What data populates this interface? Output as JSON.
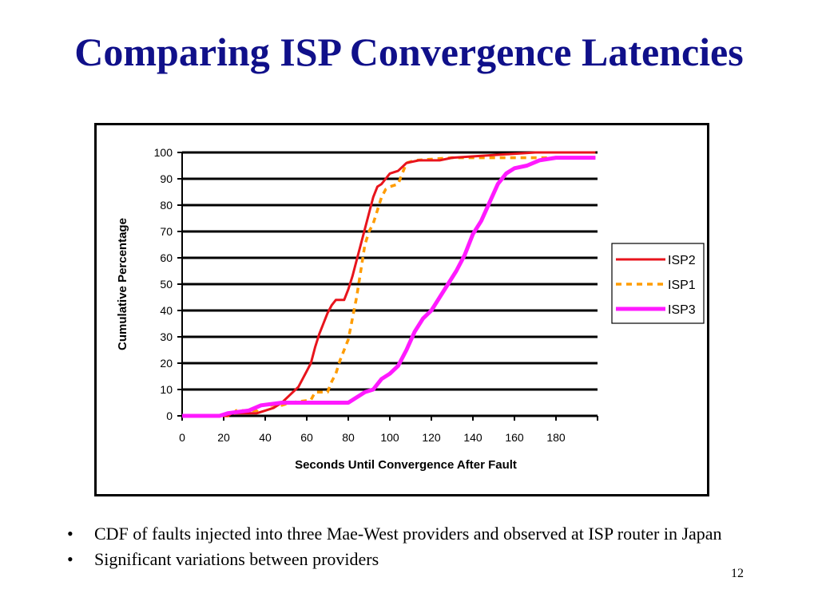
{
  "slide": {
    "title": "Comparing ISP Convergence Latencies",
    "bullets": [
      "CDF of faults injected into three Mae-West providers and observed at ISP router in Japan",
      "Significant variations between providers"
    ],
    "bullet_glyph": "•",
    "page_number": "12"
  },
  "chart_data": {
    "type": "line",
    "title": "",
    "xlabel": "Seconds Until Convergence After Fault",
    "ylabel": "Cumulative Percentage",
    "xlim": [
      0,
      200
    ],
    "ylim": [
      0,
      100
    ],
    "x_ticks": [
      0,
      20,
      40,
      60,
      80,
      100,
      120,
      140,
      160,
      180
    ],
    "y_ticks": [
      0,
      10,
      20,
      30,
      40,
      50,
      60,
      70,
      80,
      90,
      100
    ],
    "grid": "horizontal",
    "legend_position": "right",
    "series": [
      {
        "name": "ISP2",
        "color": "#e8141c",
        "style": "solid",
        "points": [
          [
            0,
            0
          ],
          [
            22,
            0
          ],
          [
            24,
            1
          ],
          [
            36,
            1
          ],
          [
            40,
            2
          ],
          [
            44,
            3
          ],
          [
            48,
            5
          ],
          [
            52,
            8
          ],
          [
            56,
            11
          ],
          [
            58,
            14
          ],
          [
            60,
            17
          ],
          [
            62,
            20
          ],
          [
            64,
            26
          ],
          [
            66,
            31
          ],
          [
            68,
            35
          ],
          [
            70,
            39
          ],
          [
            72,
            42
          ],
          [
            74,
            44
          ],
          [
            78,
            44
          ],
          [
            80,
            48
          ],
          [
            82,
            53
          ],
          [
            84,
            59
          ],
          [
            86,
            65
          ],
          [
            88,
            71
          ],
          [
            90,
            77
          ],
          [
            92,
            83
          ],
          [
            94,
            87
          ],
          [
            96,
            88
          ],
          [
            98,
            90
          ],
          [
            100,
            92
          ],
          [
            104,
            93
          ],
          [
            108,
            96
          ],
          [
            114,
            97
          ],
          [
            124,
            97
          ],
          [
            130,
            98
          ],
          [
            150,
            99
          ],
          [
            170,
            100
          ],
          [
            200,
            100
          ]
        ]
      },
      {
        "name": "ISP1",
        "color": "#ff9c00",
        "style": "dashed",
        "points": [
          [
            0,
            0
          ],
          [
            24,
            0
          ],
          [
            26,
            2
          ],
          [
            36,
            2
          ],
          [
            38,
            4
          ],
          [
            48,
            4
          ],
          [
            52,
            5
          ],
          [
            62,
            6
          ],
          [
            64,
            9
          ],
          [
            70,
            9
          ],
          [
            72,
            13
          ],
          [
            74,
            16
          ],
          [
            76,
            21
          ],
          [
            78,
            25
          ],
          [
            80,
            29
          ],
          [
            82,
            37
          ],
          [
            84,
            45
          ],
          [
            86,
            55
          ],
          [
            88,
            65
          ],
          [
            90,
            70
          ],
          [
            92,
            73
          ],
          [
            94,
            78
          ],
          [
            96,
            83
          ],
          [
            98,
            86
          ],
          [
            100,
            87
          ],
          [
            104,
            88
          ],
          [
            108,
            96
          ],
          [
            112,
            97
          ],
          [
            130,
            98
          ],
          [
            200,
            98
          ]
        ]
      },
      {
        "name": "ISP3",
        "color": "#ff1aff",
        "style": "solid",
        "points": [
          [
            0,
            0
          ],
          [
            18,
            0
          ],
          [
            22,
            1
          ],
          [
            32,
            2
          ],
          [
            38,
            4
          ],
          [
            48,
            5
          ],
          [
            68,
            5
          ],
          [
            80,
            5
          ],
          [
            84,
            7
          ],
          [
            88,
            9
          ],
          [
            92,
            10
          ],
          [
            96,
            14
          ],
          [
            100,
            16
          ],
          [
            104,
            19
          ],
          [
            108,
            25
          ],
          [
            112,
            32
          ],
          [
            116,
            37
          ],
          [
            120,
            40
          ],
          [
            124,
            45
          ],
          [
            128,
            50
          ],
          [
            132,
            55
          ],
          [
            136,
            61
          ],
          [
            140,
            69
          ],
          [
            144,
            74
          ],
          [
            148,
            81
          ],
          [
            152,
            88
          ],
          [
            156,
            92
          ],
          [
            160,
            94
          ],
          [
            166,
            95
          ],
          [
            172,
            97
          ],
          [
            180,
            98
          ],
          [
            200,
            98
          ]
        ]
      }
    ]
  }
}
